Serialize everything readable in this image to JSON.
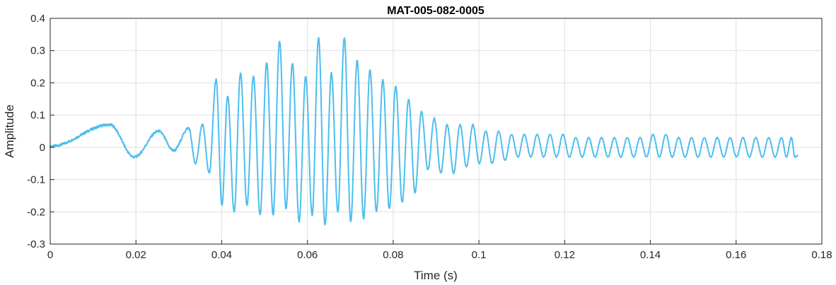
{
  "chart_data": {
    "type": "line",
    "title": "MAT-005-082-0005",
    "xlabel": "Time (s)",
    "ylabel": "Amplitude",
    "xlim": [
      0,
      0.18
    ],
    "ylim": [
      -0.3,
      0.4
    ],
    "x_ticks": [
      0,
      0.02,
      0.04,
      0.06,
      0.08,
      0.1,
      0.12,
      0.14,
      0.16,
      0.18
    ],
    "x_tick_labels": [
      "0",
      "0.02",
      "0.04",
      "0.06",
      "0.08",
      "0.1",
      "0.12",
      "0.14",
      "0.16",
      "0.18"
    ],
    "y_ticks": [
      -0.3,
      -0.2,
      -0.1,
      0,
      0.1,
      0.2,
      0.3,
      0.4
    ],
    "y_tick_labels": [
      "-0.3",
      "-0.2",
      "-0.1",
      "0",
      "0.1",
      "0.2",
      "0.3",
      "0.4"
    ],
    "grid": true,
    "legend": "none",
    "series": [
      {
        "color": "#4dbeee",
        "duration": 0.1745,
        "peak_times": [
          0.0139,
          0.0253,
          0.0323,
          0.0355,
          0.0387,
          0.0414,
          0.0444,
          0.0474,
          0.0505,
          0.0535,
          0.0565,
          0.0596,
          0.0626,
          0.0656,
          0.0686,
          0.0716,
          0.0746,
          0.0776,
          0.0806,
          0.0836,
          0.0866,
          0.0896,
          0.0926,
          0.0956,
          0.0986,
          0.1016,
          0.1046,
          0.1076,
          0.1106,
          0.1136,
          0.1166,
          0.1196,
          0.1226,
          0.1256,
          0.1286,
          0.1316,
          0.1346,
          0.1376,
          0.1406,
          0.1436,
          0.1466,
          0.1496,
          0.1526,
          0.1556,
          0.1586,
          0.1616,
          0.1646,
          0.1676,
          0.1706,
          0.1729
        ],
        "peak_values": [
          0.07,
          0.05,
          0.06,
          0.07,
          0.21,
          0.16,
          0.23,
          0.22,
          0.26,
          0.33,
          0.26,
          0.22,
          0.34,
          0.23,
          0.34,
          0.27,
          0.24,
          0.21,
          0.19,
          0.15,
          0.11,
          0.09,
          0.07,
          0.07,
          0.07,
          0.05,
          0.05,
          0.04,
          0.04,
          0.04,
          0.04,
          0.04,
          0.03,
          0.03,
          0.03,
          0.03,
          0.03,
          0.03,
          0.04,
          0.04,
          0.03,
          0.03,
          0.03,
          0.03,
          0.03,
          0.03,
          0.03,
          0.03,
          0.03,
          0.03
        ],
        "trough_values": [
          -0.03,
          -0.01,
          -0.05,
          -0.08,
          -0.18,
          -0.2,
          -0.18,
          -0.21,
          -0.21,
          -0.19,
          -0.23,
          -0.21,
          -0.24,
          -0.2,
          -0.23,
          -0.22,
          -0.2,
          -0.19,
          -0.17,
          -0.14,
          -0.07,
          -0.08,
          -0.08,
          -0.06,
          -0.05,
          -0.05,
          -0.04,
          -0.03,
          -0.03,
          -0.03,
          -0.03,
          -0.03,
          -0.03,
          -0.03,
          -0.03,
          -0.03,
          -0.03,
          -0.03,
          -0.03,
          -0.03,
          -0.03,
          -0.03,
          -0.03,
          -0.03,
          -0.03,
          -0.03,
          -0.03,
          -0.03,
          -0.03,
          -0.03
        ]
      }
    ]
  }
}
